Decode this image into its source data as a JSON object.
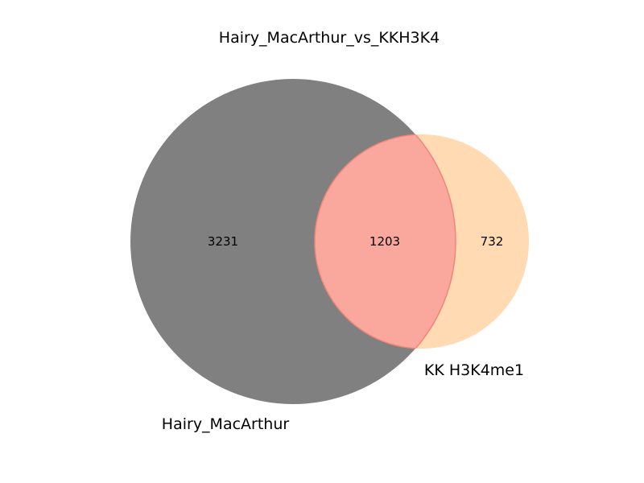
{
  "figure": {
    "title": "Hairy_MacArthur_vs_KKH3K4"
  },
  "sets": [
    {
      "name": "Hairy_MacArthur",
      "color": "#808080"
    },
    {
      "name": "KK H3K4me1",
      "color": "#ffdab3"
    }
  ],
  "regions": {
    "only_a": "3231",
    "intersection": "1203",
    "only_b": "732"
  },
  "colors": {
    "intersection": "#faa89e",
    "intersection_edge": "#f08678",
    "background": "#ffffff"
  }
}
